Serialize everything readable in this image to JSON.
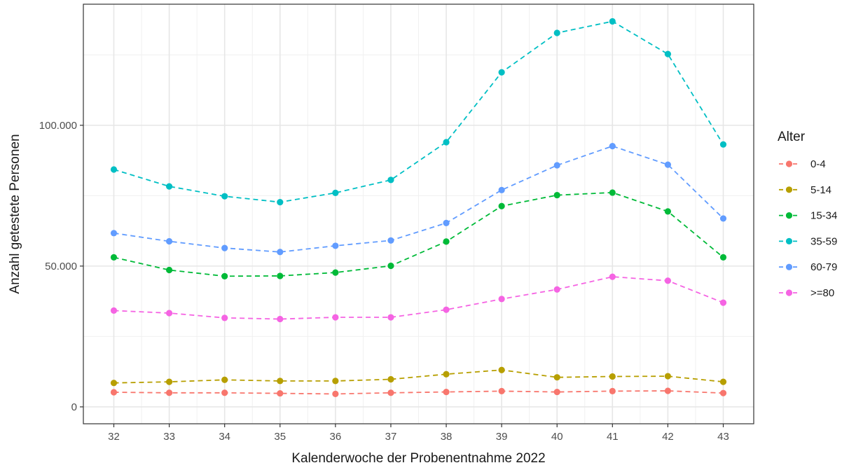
{
  "chart_data": {
    "type": "line",
    "title": "",
    "xlabel": "Kalenderwoche der Probenentnahme 2022",
    "ylabel": "Anzahl getestete Personen",
    "x": [
      32,
      33,
      34,
      35,
      36,
      37,
      38,
      39,
      40,
      41,
      42,
      43
    ],
    "x_tick_labels": [
      "32",
      "33",
      "34",
      "35",
      "36",
      "37",
      "38",
      "39",
      "40",
      "41",
      "42",
      "43"
    ],
    "xlim": [
      31.45,
      43.55
    ],
    "ylim": [
      -6000,
      143000
    ],
    "y_ticks": [
      0,
      50000,
      100000
    ],
    "y_tick_labels": [
      "0",
      "50.000",
      "100.000"
    ],
    "grid": true,
    "line_style": "dashed",
    "legend": {
      "title": "Alter",
      "position": "right"
    },
    "series": [
      {
        "name": "0-4",
        "color": "#F8766D",
        "values": [
          5200,
          5000,
          5000,
          4800,
          4600,
          5000,
          5300,
          5600,
          5300,
          5600,
          5700,
          4900
        ]
      },
      {
        "name": "5-14",
        "color": "#B79F00",
        "values": [
          8500,
          8900,
          9600,
          9200,
          9200,
          9800,
          11600,
          13100,
          10500,
          10800,
          10900,
          8900
        ]
      },
      {
        "name": "15-34",
        "color": "#00BA38",
        "values": [
          53100,
          48600,
          46400,
          46500,
          47700,
          50100,
          58700,
          71300,
          75200,
          76100,
          69400,
          53100
        ]
      },
      {
        "name": "35-59",
        "color": "#00BFC4",
        "values": [
          84300,
          78300,
          74800,
          72700,
          76000,
          80600,
          94000,
          118800,
          132800,
          136900,
          125300,
          93200
        ]
      },
      {
        "name": "60-79",
        "color": "#619CFF",
        "values": [
          61700,
          58800,
          56400,
          55000,
          57200,
          59100,
          65300,
          77000,
          85800,
          92600,
          86000,
          66900
        ]
      },
      {
        "name": ">=80",
        "color": "#F564E3",
        "values": [
          34200,
          33300,
          31600,
          31200,
          31800,
          31800,
          34500,
          38300,
          41700,
          46200,
          44800,
          37000
        ]
      }
    ]
  }
}
